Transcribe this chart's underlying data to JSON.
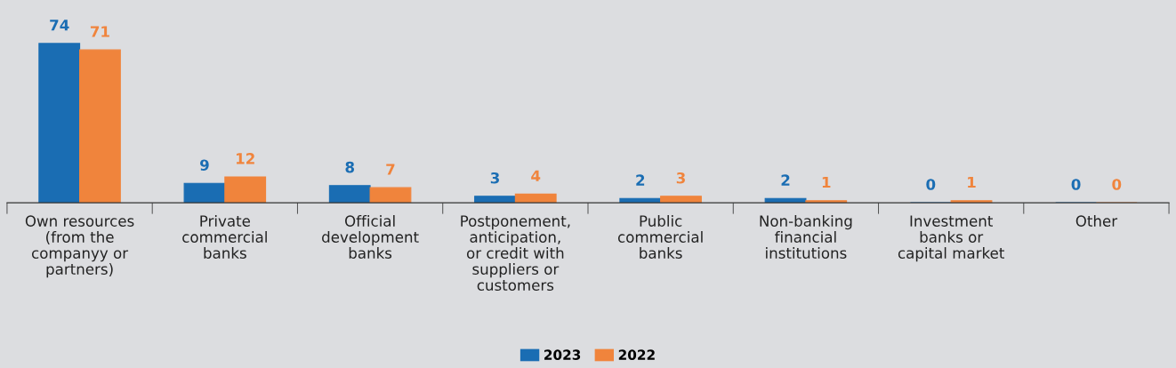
{
  "chart_data": {
    "type": "bar",
    "data_labels": true,
    "legend": "bottom",
    "grid": false,
    "categories": [
      "Own resources\n(from the\ncompanyy or\npartners)",
      "Private\ncommercial\nbanks",
      "Official\ndevelopment\nbanks",
      "Postponement,\nanticipation,\nor credit with\nsuppliers or\ncustomers",
      "Public\ncommercial\nbanks",
      "Non-banking\nfinancial\ninstitutions",
      "Investment\nbanks or\ncapital market",
      "Other"
    ],
    "series": [
      {
        "name": "2023",
        "color": "#1a6db3",
        "values": [
          74,
          9,
          8,
          3,
          2,
          2,
          0,
          0
        ]
      },
      {
        "name": "2022",
        "color": "#f0843c",
        "values": [
          71,
          12,
          7,
          4,
          3,
          1,
          1,
          0
        ]
      }
    ]
  }
}
